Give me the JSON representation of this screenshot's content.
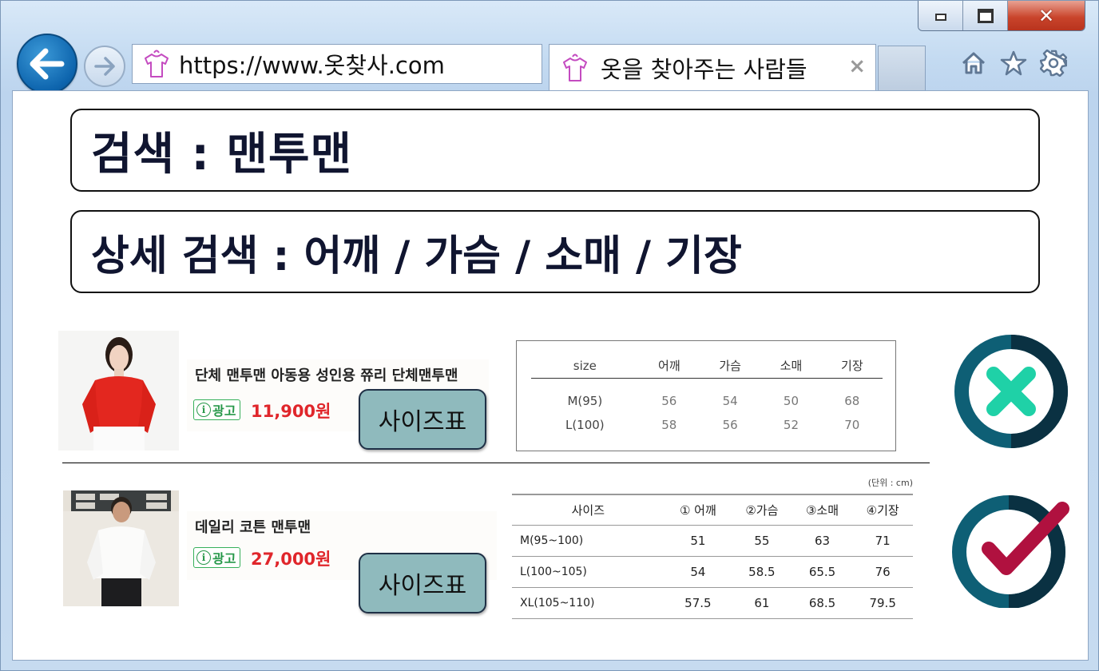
{
  "browser": {
    "url": "https://www.옷찾사.com",
    "tab_title": "옷을 찾아주는 사람들",
    "tab_close": "×",
    "window_close": "✕"
  },
  "search": {
    "main": "검색 :  맨투맨",
    "detail": "상세 검색 : 어깨 / 가슴 / 소매 / 기장"
  },
  "products": [
    {
      "name": "단체 맨투맨 아동용 성인용 쮸리 단체맨투맨",
      "ad_label": "광고",
      "ad_icon": "i",
      "price": "11,900원",
      "size_button": "사이즈표",
      "size_table": {
        "headers": [
          "size",
          "어깨",
          "가슴",
          "소매",
          "기장"
        ],
        "rows": [
          [
            "M(95)",
            "56",
            "54",
            "50",
            "68"
          ],
          [
            "L(100)",
            "58",
            "56",
            "52",
            "70"
          ]
        ]
      },
      "status": "x-icon",
      "status_colors": {
        "ring_light": "#0e5f75",
        "ring_dark": "#0a3142",
        "mark": "#1fd1a7"
      }
    },
    {
      "name": "데일리 코튼 맨투맨",
      "ad_label": "광고",
      "ad_icon": "i",
      "price": "27,000원",
      "size_button": "사이즈표",
      "size_table": {
        "unit": "(단위 : cm)",
        "headers": [
          "사이즈",
          "① 어깨",
          "②가슴",
          "③소매",
          "④기장"
        ],
        "rows": [
          [
            "M(95~100)",
            "51",
            "55",
            "63",
            "71"
          ],
          [
            "L(100~105)",
            "54",
            "58.5",
            "65.5",
            "76"
          ],
          [
            "XL(105~110)",
            "57.5",
            "61",
            "68.5",
            "79.5"
          ]
        ]
      },
      "status": "check-icon",
      "status_colors": {
        "ring_light": "#0e5f75",
        "ring_dark": "#0a3142",
        "mark": "#b0113f"
      }
    }
  ]
}
